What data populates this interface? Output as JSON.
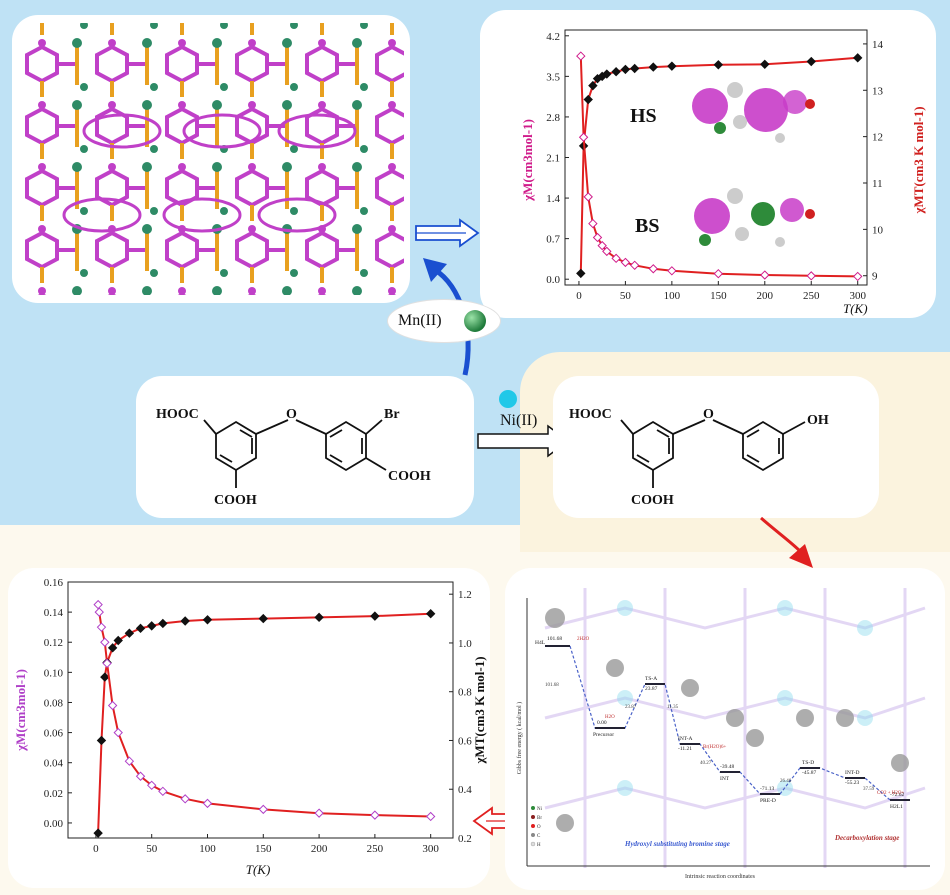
{
  "labels": {
    "mn": "Mn(II)",
    "ni": "Ni(II)"
  },
  "ligand_left": {
    "cooh_top": "HOOC",
    "o": "O",
    "br": "Br",
    "cooh_bottom": "COOH",
    "cooh_right": "COOH"
  },
  "ligand_right": {
    "cooh_top": "HOOC",
    "o": "O",
    "oh": "OH",
    "cooh_bottom": "COOH"
  },
  "chart_top": {
    "hs_label": "HS",
    "bs_label": "BS"
  },
  "chart_data": [
    {
      "type": "scatter",
      "title": "",
      "xlabel": "T(K)",
      "ylabel_left": "χM(cm3mol-1)",
      "ylabel_right": "χMT(cm3 K mol-1)",
      "xlim": [
        -15,
        310
      ],
      "ylim_left": [
        -0.1,
        4.3
      ],
      "ylim_right": [
        8.8,
        14.3
      ],
      "x_ticks": [
        "0",
        "50",
        "100",
        "150",
        "200",
        "250",
        "300"
      ],
      "y_left_ticks": [
        "0.0",
        "0.7",
        "1.4",
        "2.1",
        "2.8",
        "3.5",
        "4.2"
      ],
      "y_right_ticks": [
        "9",
        "10",
        "11",
        "12",
        "13",
        "14"
      ],
      "series": [
        {
          "axis": "right",
          "color": "#111111",
          "marker": "diamond",
          "x": [
            2,
            5,
            10,
            15,
            20,
            25,
            30,
            40,
            50,
            60,
            80,
            100,
            150,
            200,
            250,
            300
          ],
          "values": [
            9.05,
            11.8,
            12.8,
            13.1,
            13.25,
            13.3,
            13.35,
            13.4,
            13.45,
            13.47,
            13.5,
            13.52,
            13.55,
            13.56,
            13.62,
            13.7
          ]
        },
        {
          "axis": "left",
          "color": "#d01c8b",
          "marker": "open-diamond",
          "x": [
            2,
            5,
            10,
            15,
            20,
            25,
            30,
            40,
            50,
            60,
            80,
            100,
            150,
            200,
            250,
            300
          ],
          "values": [
            3.85,
            2.45,
            1.42,
            0.96,
            0.72,
            0.58,
            0.48,
            0.36,
            0.29,
            0.24,
            0.18,
            0.145,
            0.095,
            0.072,
            0.058,
            0.048
          ]
        }
      ]
    },
    {
      "type": "scatter",
      "title": "",
      "xlabel": "T(K)",
      "ylabel_left": "χM(cm3mol-1)",
      "ylabel_right": "χMT(cm3 K mol-1)",
      "xlim": [
        -25,
        320
      ],
      "ylim_left": [
        -0.01,
        0.16
      ],
      "ylim_right": [
        0.2,
        1.25
      ],
      "x_ticks": [
        "0",
        "50",
        "100",
        "150",
        "200",
        "250",
        "300"
      ],
      "y_left_ticks": [
        "0.00",
        "0.02",
        "0.04",
        "0.06",
        "0.08",
        "0.10",
        "0.12",
        "0.14",
        "0.16"
      ],
      "y_right_ticks": [
        "0.2",
        "0.4",
        "0.6",
        "0.8",
        "1.0",
        "1.2"
      ],
      "series": [
        {
          "axis": "right",
          "color": "#111111",
          "marker": "diamond",
          "x": [
            2,
            5,
            8,
            10,
            15,
            20,
            30,
            40,
            50,
            60,
            80,
            100,
            150,
            200,
            250,
            300
          ],
          "values": [
            0.22,
            0.6,
            0.86,
            0.92,
            0.98,
            1.01,
            1.04,
            1.06,
            1.07,
            1.08,
            1.09,
            1.095,
            1.1,
            1.105,
            1.11,
            1.12
          ]
        },
        {
          "axis": "left",
          "color": "#b040c8",
          "marker": "open-diamond",
          "x": [
            2,
            3,
            5,
            8,
            10,
            15,
            20,
            30,
            40,
            50,
            60,
            80,
            100,
            150,
            200,
            250,
            300
          ],
          "values": [
            0.145,
            0.14,
            0.13,
            0.12,
            0.106,
            0.078,
            0.06,
            0.041,
            0.031,
            0.025,
            0.021,
            0.016,
            0.013,
            0.009,
            0.0065,
            0.0052,
            0.0043
          ]
        }
      ]
    }
  ],
  "energy_profile": {
    "y_axis_label": "Gibbs free energy ( kcal/mol )",
    "x_axis_label": "Intrinsic reaction coordinates",
    "stage_1": "Hydroxyl substituting bromine stage",
    "stage_2": "Decarboxylation stage",
    "legend": [
      "Ni",
      "Br",
      "O",
      "C",
      "H"
    ],
    "points": [
      {
        "name": "H4L",
        "value": "101.68"
      },
      {
        "name": "Precursor",
        "value": "0.00"
      },
      {
        "name": "TS-A",
        "value": "23.87"
      },
      {
        "name": "INT-A",
        "value": "-11.21"
      },
      {
        "name": "INT",
        "value": "-39.48"
      },
      {
        "name": "PRE-D",
        "value": "-71.13"
      },
      {
        "name": "TS-D",
        "value": "-45.87"
      },
      {
        "name": "INT-D",
        "value": "-55.23"
      },
      {
        "name": "H2L1",
        "value": "-72.62"
      }
    ],
    "misc_values": [
      "101.68",
      "23.87",
      "11.35",
      "40.27",
      "26.46",
      "37.59"
    ],
    "species": [
      "2H2O",
      "H2O",
      "Br(H2O)6+",
      "CO2 + H2O+"
    ]
  }
}
